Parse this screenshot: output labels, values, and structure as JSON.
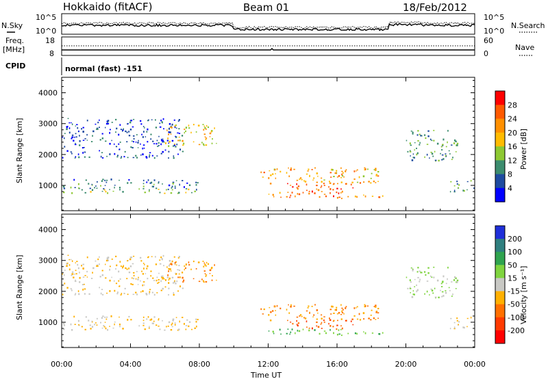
{
  "header": {
    "title": "Hokkaido (fitACF)",
    "beam": "Beam 01",
    "date": "18/Feb/2012"
  },
  "panels": {
    "noise": {
      "left_label": "N.Sky",
      "right_label": "N.Search",
      "left_ticks": [
        "10^5",
        "10^0"
      ],
      "right_ticks": [
        "10^5",
        "10^0"
      ]
    },
    "freq": {
      "left_label_1": "Freq.",
      "left_label_2": "[MHz]",
      "left_ticks": [
        "18",
        "8"
      ],
      "right_label": "Nave",
      "right_ticks": [
        "60",
        "0"
      ]
    },
    "cpid": {
      "label": "CPID",
      "value": "normal (fast) -151"
    }
  },
  "colorbars": {
    "power": {
      "label": "Power [dB]",
      "ticks": [
        "28",
        "24",
        "20",
        "16",
        "12",
        "8",
        "4"
      ],
      "colors": [
        "#ff0000",
        "#ff5a00",
        "#ff9000",
        "#ffbb00",
        "#8dc832",
        "#3c8c6e",
        "#1e4ba0",
        "#0000ff"
      ]
    },
    "velocity": {
      "label": "Velocity [m s⁻¹]",
      "ticks": [
        "200",
        "100",
        "50",
        "15",
        "-15",
        "-50",
        "-100",
        "-200"
      ],
      "colors": [
        "#1f2fd9",
        "#2f7f7f",
        "#2fa34f",
        "#7fd43f",
        "#c8c8c4",
        "#ffb000",
        "#ff7000",
        "#ff3a00",
        "#ff0000"
      ]
    }
  },
  "chart_data": {
    "type": "heatmap",
    "title": "Hokkaido (fitACF)",
    "xlabel": "Time UT",
    "ylabel": "Slant Range [km]",
    "x_ticks": [
      "00:00",
      "04:00",
      "08:00",
      "12:00",
      "16:00",
      "20:00",
      "00:00"
    ],
    "y_ticks": [
      "1000",
      "2000",
      "3000",
      "4000"
    ],
    "x_range_hours": [
      0,
      24
    ],
    "y_range_km": [
      180,
      4500
    ],
    "scatter_regions": [
      {
        "name": "morning-band",
        "t": [
          0,
          8
        ],
        "r": [
          880,
          1230
        ],
        "power": 8,
        "velocity": -15
      },
      {
        "name": "morning-low",
        "t": [
          0,
          8
        ],
        "r": [
          760,
          900
        ],
        "power": 14,
        "velocity": -15
      },
      {
        "name": "morning-far",
        "t": [
          0,
          7
        ],
        "r": [
          1900,
          3200
        ],
        "power": 6,
        "velocity": -15
      },
      {
        "name": "morning-streaks",
        "t": [
          6,
          9
        ],
        "r": [
          2300,
          3000
        ],
        "power": 18,
        "velocity": -50
      },
      {
        "name": "day-echo",
        "t": [
          11.5,
          18.5
        ],
        "r": [
          1050,
          1600
        ],
        "power": 20,
        "velocity": -50
      },
      {
        "name": "day-core",
        "t": [
          13,
          17
        ],
        "r": [
          800,
          1100
        ],
        "power": 26,
        "velocity": -100
      },
      {
        "name": "day-low",
        "t": [
          12,
          19
        ],
        "r": [
          600,
          800
        ],
        "power": 24,
        "velocity": 50
      },
      {
        "name": "evening-far",
        "t": [
          20,
          23
        ],
        "r": [
          1800,
          2800
        ],
        "power": 10,
        "velocity": 15
      },
      {
        "name": "late-band",
        "t": [
          22.5,
          24
        ],
        "r": [
          780,
          1200
        ],
        "power": 10,
        "velocity": -15
      }
    ]
  }
}
